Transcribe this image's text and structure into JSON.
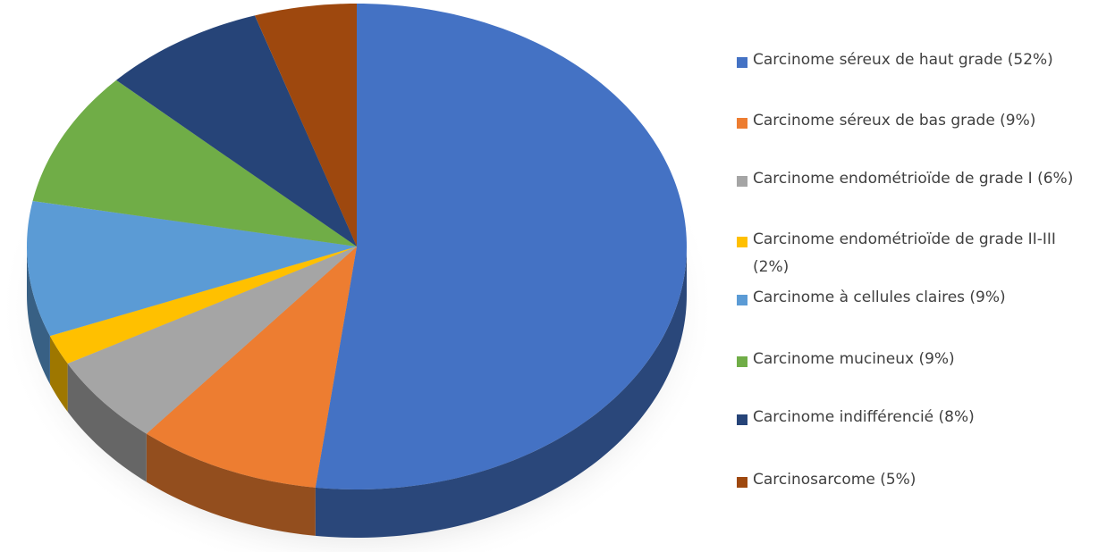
{
  "chart_data": {
    "type": "pie",
    "categories": [
      "Carcinome séreux de haut grade (52%)",
      "Carcinome séreux de bas grade (9%)",
      "Carcinome endométrioïde de grade I (6%)",
      "Carcinome endométrioïde de grade II-III (2%)",
      "Carcinome à cellules claires (9%)",
      "Carcinome mucineux (9%)",
      "Carcinome indifférencié (8%)",
      "Carcinosarcome (5%)"
    ],
    "values": [
      52,
      9,
      6,
      2,
      9,
      9,
      8,
      5
    ],
    "colors": [
      "#4472c4",
      "#ed7d31",
      "#a5a5a5",
      "#ffc000",
      "#5b9bd5",
      "#70ad47",
      "#264478",
      "#9e480e"
    ],
    "legend": "right"
  }
}
